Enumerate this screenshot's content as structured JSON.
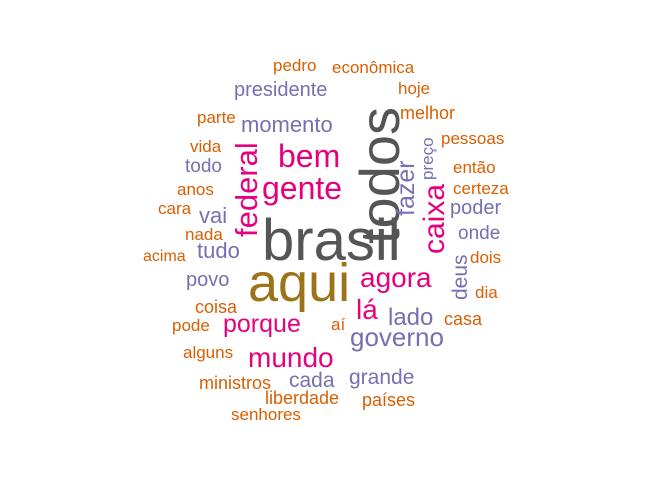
{
  "words": [
    {
      "text": "brasil",
      "color": "#555555"
    },
    {
      "text": "todos",
      "color": "#555555"
    },
    {
      "text": "aqui",
      "color": "#9c7318"
    },
    {
      "text": "gente",
      "color": "#e6007e"
    },
    {
      "text": "bem",
      "color": "#e6007e"
    },
    {
      "text": "federal",
      "color": "#e6007e"
    },
    {
      "text": "caixa",
      "color": "#e6007e"
    },
    {
      "text": "agora",
      "color": "#e6007e"
    },
    {
      "text": "lá",
      "color": "#e6007e"
    },
    {
      "text": "porque",
      "color": "#e6007e"
    },
    {
      "text": "mundo",
      "color": "#e6007e"
    },
    {
      "text": "fazer",
      "color": "#7570b3"
    },
    {
      "text": "preço",
      "color": "#7570b3"
    },
    {
      "text": "deus",
      "color": "#7570b3"
    },
    {
      "text": "governo",
      "color": "#7570b3"
    },
    {
      "text": "lado",
      "color": "#7570b3"
    },
    {
      "text": "presidente",
      "color": "#7570b3"
    },
    {
      "text": "momento",
      "color": "#7570b3"
    },
    {
      "text": "todo",
      "color": "#7570b3"
    },
    {
      "text": "vai",
      "color": "#7570b3"
    },
    {
      "text": "tudo",
      "color": "#7570b3"
    },
    {
      "text": "povo",
      "color": "#7570b3"
    },
    {
      "text": "poder",
      "color": "#7570b3"
    },
    {
      "text": "onde",
      "color": "#7570b3"
    },
    {
      "text": "cada",
      "color": "#7570b3"
    },
    {
      "text": "grande",
      "color": "#7570b3"
    },
    {
      "text": "pedro",
      "color": "#d95f02"
    },
    {
      "text": "econômica",
      "color": "#d95f02"
    },
    {
      "text": "hoje",
      "color": "#d95f02"
    },
    {
      "text": "melhor",
      "color": "#d95f02"
    },
    {
      "text": "parte",
      "color": "#d95f02"
    },
    {
      "text": "vida",
      "color": "#d95f02"
    },
    {
      "text": "pessoas",
      "color": "#d95f02"
    },
    {
      "text": "então",
      "color": "#d95f02"
    },
    {
      "text": "anos",
      "color": "#d95f02"
    },
    {
      "text": "certeza",
      "color": "#d95f02"
    },
    {
      "text": "cara",
      "color": "#d95f02"
    },
    {
      "text": "nada",
      "color": "#d95f02"
    },
    {
      "text": "acima",
      "color": "#d95f02"
    },
    {
      "text": "dois",
      "color": "#d95f02"
    },
    {
      "text": "dia",
      "color": "#d95f02"
    },
    {
      "text": "coisa",
      "color": "#d95f02"
    },
    {
      "text": "casa",
      "color": "#d95f02"
    },
    {
      "text": "pode",
      "color": "#d95f02"
    },
    {
      "text": "aí",
      "color": "#d95f02"
    },
    {
      "text": "alguns",
      "color": "#d95f02"
    },
    {
      "text": "ministros",
      "color": "#d95f02"
    },
    {
      "text": "liberdade",
      "color": "#d95f02"
    },
    {
      "text": "países",
      "color": "#d95f02"
    },
    {
      "text": "senhores",
      "color": "#d95f02"
    }
  ]
}
